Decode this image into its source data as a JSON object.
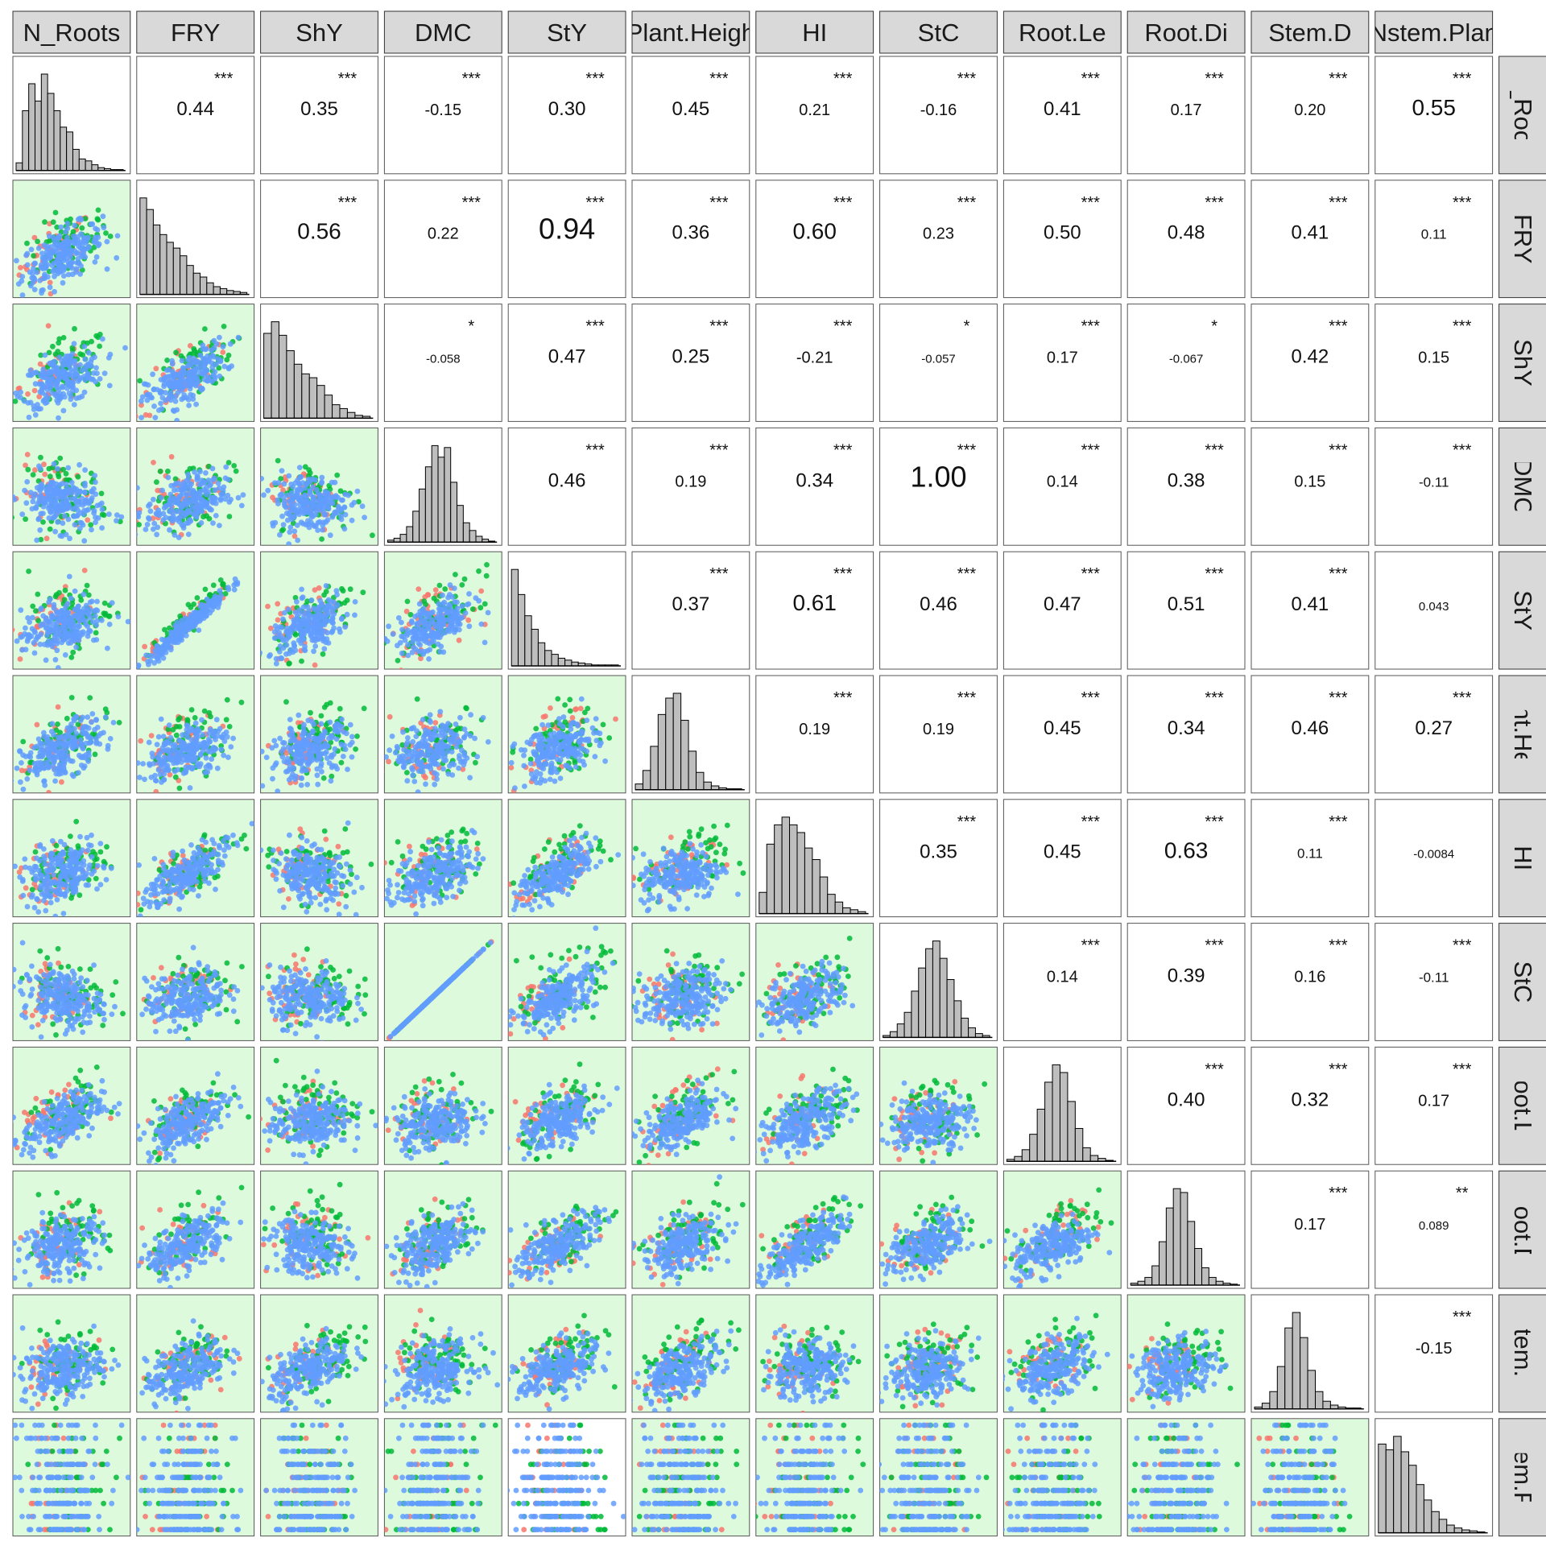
{
  "chart_data": {
    "type": "scatter-matrix",
    "title": "",
    "variables": [
      "N_Roots",
      "FRY",
      "ShY",
      "DMC",
      "StY",
      "Plant.Heigh",
      "HI",
      "StC",
      "Root.Le",
      "Root.Di",
      "Stem.D",
      "Nstem.Plan"
    ],
    "group_colors": [
      "#F8766D",
      "#00BA38",
      "#619CFF"
    ],
    "panel_bg_lower": "#DDFADC",
    "strip_bg": "#D9D9D9",
    "histogram_fill": "#BEBEBE",
    "upper": [
      [
        "0.44",
        "***"
      ],
      [
        "0.35",
        "***"
      ],
      [
        "-0.15",
        "***"
      ],
      [
        "0.30",
        "***"
      ],
      [
        "0.45",
        "***"
      ],
      [
        "0.21",
        "***"
      ],
      [
        "-0.16",
        "***"
      ],
      [
        "0.41",
        "***"
      ],
      [
        "0.17",
        "***"
      ],
      [
        "0.20",
        "***"
      ],
      [
        "0.55",
        "***"
      ],
      [
        "0.56",
        "***"
      ],
      [
        "0.22",
        "***"
      ],
      [
        "0.94",
        "***"
      ],
      [
        "0.36",
        "***"
      ],
      [
        "0.60",
        "***"
      ],
      [
        "0.23",
        "***"
      ],
      [
        "0.50",
        "***"
      ],
      [
        "0.48",
        "***"
      ],
      [
        "0.41",
        "***"
      ],
      [
        "0.11",
        "***"
      ],
      [
        "-0.058",
        "*"
      ],
      [
        "0.47",
        "***"
      ],
      [
        "0.25",
        "***"
      ],
      [
        "-0.21",
        "***"
      ],
      [
        "-0.057",
        "*"
      ],
      [
        "0.17",
        "***"
      ],
      [
        "-0.067",
        "*"
      ],
      [
        "0.42",
        "***"
      ],
      [
        "0.15",
        "***"
      ],
      [
        "0.46",
        "***"
      ],
      [
        "0.19",
        "***"
      ],
      [
        "0.34",
        "***"
      ],
      [
        "1.00",
        "***"
      ],
      [
        "0.14",
        "***"
      ],
      [
        "0.38",
        "***"
      ],
      [
        "0.15",
        "***"
      ],
      [
        "-0.11",
        "***"
      ],
      [
        "0.37",
        "***"
      ],
      [
        "0.61",
        "***"
      ],
      [
        "0.46",
        "***"
      ],
      [
        "0.47",
        "***"
      ],
      [
        "0.51",
        "***"
      ],
      [
        "0.41",
        "***"
      ],
      [
        "0.043",
        ""
      ],
      [
        "0.19",
        "***"
      ],
      [
        "0.19",
        "***"
      ],
      [
        "0.45",
        "***"
      ],
      [
        "0.34",
        "***"
      ],
      [
        "0.46",
        "***"
      ],
      [
        "0.27",
        "***"
      ],
      [
        "0.35",
        "***"
      ],
      [
        "0.45",
        "***"
      ],
      [
        "0.63",
        "***"
      ],
      [
        "0.11",
        "***"
      ],
      [
        "-0.0084",
        ""
      ],
      [
        "0.14",
        "***"
      ],
      [
        "0.39",
        "***"
      ],
      [
        "0.16",
        "***"
      ],
      [
        "-0.11",
        "***"
      ],
      [
        "0.40",
        "***"
      ],
      [
        "0.32",
        "***"
      ],
      [
        "0.17",
        "***"
      ],
      [
        "0.17",
        "***"
      ],
      [
        "0.089",
        "**"
      ],
      [
        "-0.15",
        "***"
      ]
    ],
    "histograms": [
      [
        8,
        62,
        90,
        72,
        100,
        80,
        62,
        45,
        40,
        22,
        12,
        10,
        6,
        3,
        2,
        1,
        1
      ],
      [
        100,
        88,
        72,
        62,
        54,
        48,
        40,
        30,
        22,
        18,
        12,
        8,
        6,
        4,
        3,
        2
      ],
      [
        88,
        100,
        86,
        70,
        56,
        46,
        42,
        34,
        24,
        14,
        10,
        6,
        3,
        2
      ],
      [
        2,
        4,
        8,
        16,
        32,
        55,
        78,
        100,
        88,
        98,
        62,
        38,
        20,
        12,
        6,
        3,
        1
      ],
      [
        100,
        74,
        52,
        38,
        24,
        16,
        12,
        8,
        6,
        4,
        3,
        2,
        1,
        1,
        1,
        1
      ],
      [
        6,
        20,
        45,
        78,
        95,
        100,
        72,
        40,
        18,
        8,
        4,
        2,
        1,
        1
      ],
      [
        22,
        72,
        92,
        100,
        92,
        84,
        68,
        56,
        38,
        20,
        12,
        6,
        4,
        2
      ],
      [
        2,
        6,
        14,
        26,
        48,
        72,
        92,
        100,
        82,
        60,
        38,
        20,
        10,
        4,
        2
      ],
      [
        2,
        5,
        12,
        28,
        54,
        82,
        100,
        92,
        62,
        34,
        14,
        6,
        3,
        1
      ],
      [
        2,
        4,
        8,
        20,
        45,
        80,
        100,
        96,
        66,
        38,
        18,
        8,
        4,
        2,
        1
      ],
      [
        2,
        6,
        18,
        44,
        84,
        100,
        74,
        40,
        18,
        8,
        4,
        2,
        1,
        1
      ],
      [
        92,
        86,
        100,
        84,
        70,
        50,
        34,
        22,
        14,
        8,
        5,
        3,
        2,
        1
      ]
    ]
  }
}
